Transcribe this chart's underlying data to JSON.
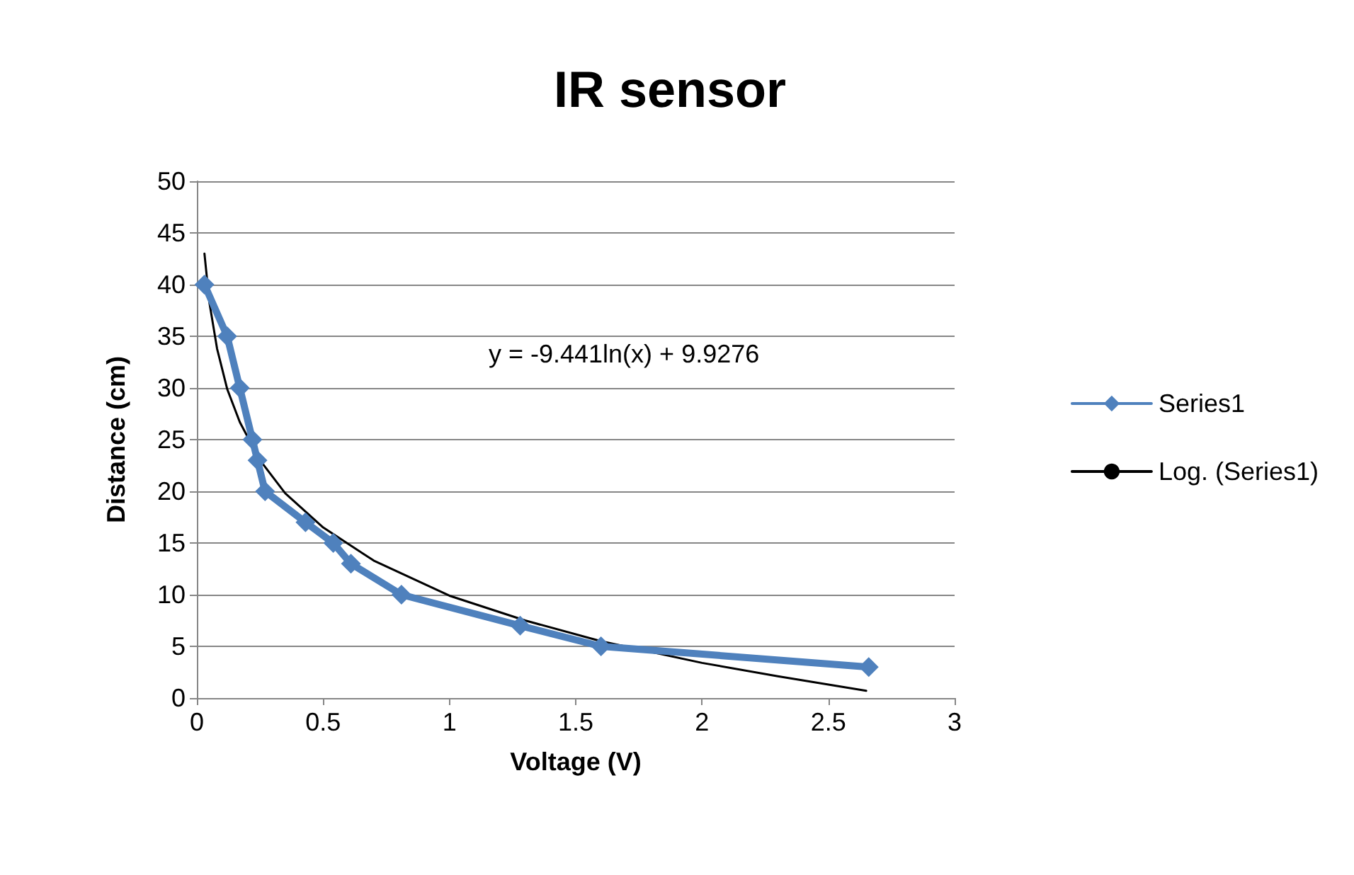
{
  "chart_data": {
    "type": "line",
    "title": "IR sensor",
    "xlabel": "Voltage (V)",
    "ylabel": "Distance (cm)",
    "annotations": [
      "y = -9.441ln(x) + 9.9276"
    ],
    "series": [
      {
        "name": "Series1",
        "color": "#4f81bd",
        "marker": "diamond",
        "x": [
          0.03,
          0.12,
          0.17,
          0.22,
          0.24,
          0.27,
          0.43,
          0.54,
          0.61,
          0.81,
          1.28,
          1.6,
          2.66
        ],
        "values": [
          40,
          35,
          30,
          25,
          23,
          20,
          17,
          15,
          13,
          10,
          7,
          5,
          3
        ]
      },
      {
        "name": "Log. (Series1)",
        "color": "#000000",
        "marker": "none",
        "x": [
          0.03,
          0.05,
          0.08,
          0.12,
          0.17,
          0.25,
          0.35,
          0.5,
          0.7,
          1,
          1.3,
          1.6,
          2,
          2.3,
          2.65
        ],
        "values": [
          43.0,
          38.2,
          33.8,
          29.9,
          26.7,
          23.0,
          19.8,
          16.5,
          13.3,
          9.9,
          7.5,
          5.5,
          3.4,
          2.1,
          0.7
        ]
      }
    ],
    "xlim": [
      0,
      3
    ],
    "xticks": [
      0,
      0.5,
      1,
      1.5,
      2,
      2.5,
      3
    ],
    "ylim": [
      0,
      50
    ],
    "yticks": [
      0,
      5,
      10,
      15,
      20,
      25,
      30,
      35,
      40,
      45,
      50
    ],
    "grid": "y",
    "legend": "right"
  }
}
